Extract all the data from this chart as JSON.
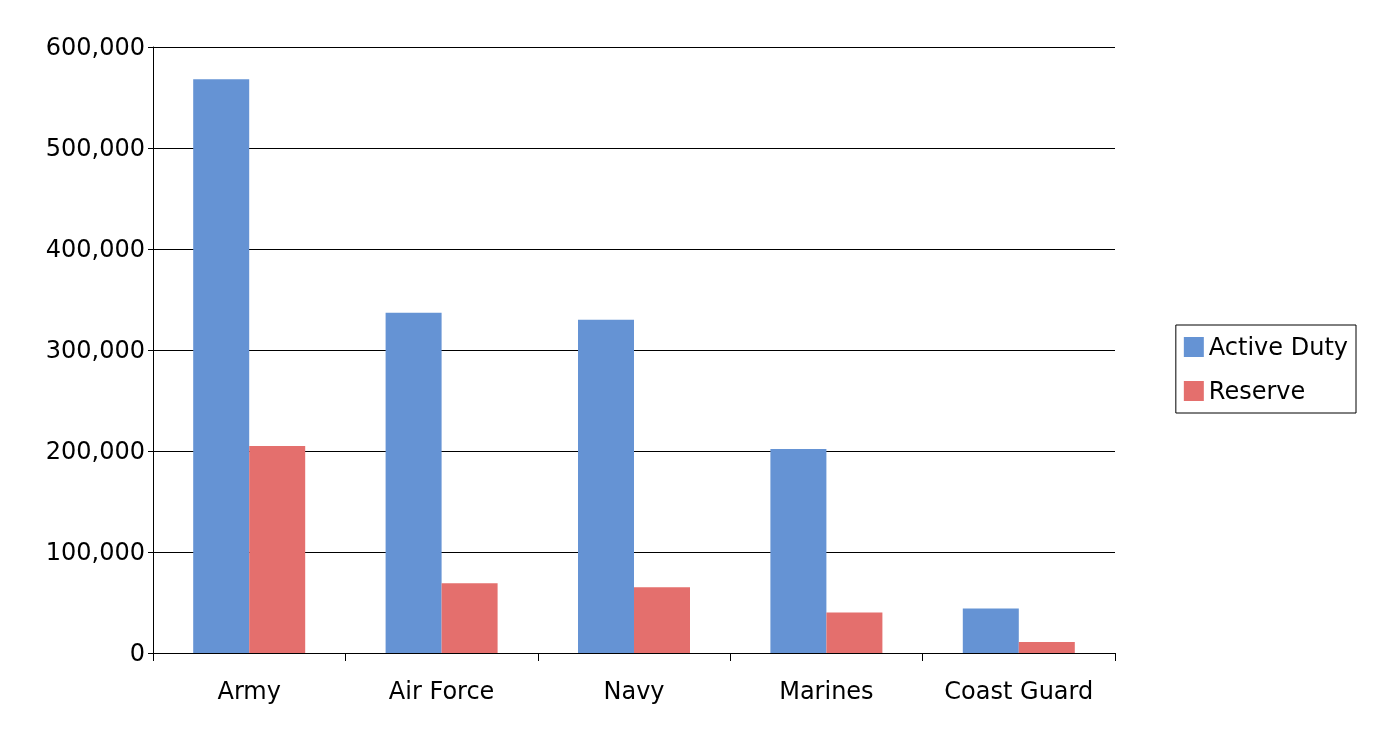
{
  "chart_data": {
    "type": "bar",
    "categories": [
      "Army",
      "Air Force",
      "Navy",
      "Marines",
      "Coast Guard"
    ],
    "series": [
      {
        "name": "Active Duty",
        "color": "#6593d4",
        "values": [
          568000,
          337000,
          330000,
          202000,
          44000
        ]
      },
      {
        "name": "Reserve",
        "color": "#e46f6d",
        "values": [
          205000,
          69000,
          65000,
          40000,
          11000
        ]
      }
    ],
    "ylim": [
      0,
      600000
    ],
    "yticks": [
      0,
      {
        "value": 100000,
        "label": "100,000"
      },
      {
        "value": 200000,
        "label": "200,000"
      },
      {
        "value": 300000,
        "label": "300,000"
      },
      {
        "value": 400000,
        "label": "400,000"
      },
      {
        "value": 500000,
        "label": "500,000"
      },
      {
        "value": 600000,
        "label": "600,000"
      }
    ],
    "grid": "y",
    "legend": "right"
  }
}
